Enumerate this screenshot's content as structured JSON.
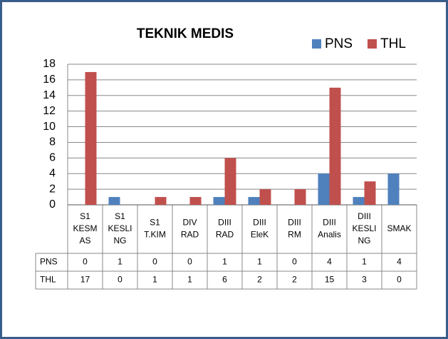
{
  "chart_data": {
    "type": "bar",
    "title": "TEKNIK MEDIS",
    "categories": [
      [
        "S1",
        "KESM",
        "AS"
      ],
      [
        "S1",
        "KESLI",
        "NG"
      ],
      [
        "S1",
        "T.KIM"
      ],
      [
        "DIV",
        "RAD"
      ],
      [
        "DIII",
        "RAD"
      ],
      [
        "DIII",
        "EleK"
      ],
      [
        "DIII",
        "RM"
      ],
      [
        "DIII",
        "Analis"
      ],
      [
        "DIII",
        "KESLI",
        "NG"
      ],
      [
        "SMAK"
      ]
    ],
    "series": [
      {
        "name": "PNS",
        "color": "#4f81bd",
        "values": [
          0,
          1,
          0,
          0,
          1,
          1,
          0,
          4,
          1,
          4
        ]
      },
      {
        "name": "THL",
        "color": "#c0504d",
        "values": [
          17,
          0,
          1,
          1,
          6,
          2,
          2,
          15,
          3,
          0
        ]
      }
    ],
    "ylim": [
      0,
      18
    ],
    "yticks": [
      0,
      2,
      4,
      6,
      8,
      10,
      12,
      14,
      16,
      18
    ],
    "grid": true,
    "legend": "top-right",
    "data_table": true
  }
}
